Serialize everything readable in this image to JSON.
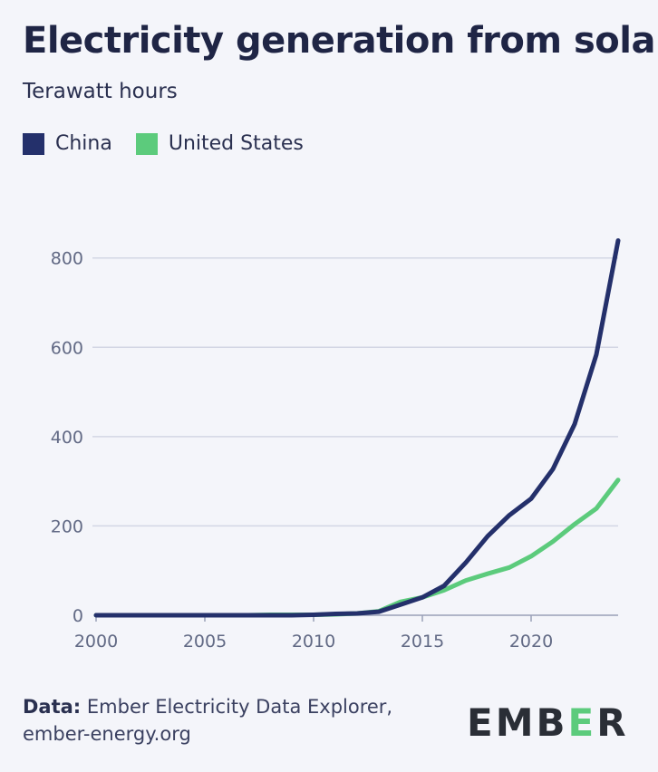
{
  "chart_data": {
    "type": "line",
    "title": "Electricity generation from solar",
    "subtitle": "Terawatt hours",
    "xlabel": "",
    "ylabel": "Terawatt hours",
    "xlim": [
      2000,
      2024
    ],
    "ylim": [
      0,
      840
    ],
    "x_ticks": [
      2000,
      2005,
      2010,
      2015,
      2020
    ],
    "y_ticks": [
      0,
      200,
      400,
      600,
      800
    ],
    "x": [
      2000,
      2001,
      2002,
      2003,
      2004,
      2005,
      2006,
      2007,
      2008,
      2009,
      2010,
      2011,
      2012,
      2013,
      2014,
      2015,
      2016,
      2017,
      2018,
      2019,
      2020,
      2021,
      2022,
      2023,
      2024
    ],
    "series": [
      {
        "name": "China",
        "color": "#24306b",
        "values": [
          0,
          0,
          0,
          0,
          0,
          0,
          0,
          0,
          0,
          0,
          1,
          3,
          4,
          8,
          24,
          40,
          66,
          118,
          177,
          224,
          261,
          327,
          428,
          584,
          839
        ]
      },
      {
        "name": "United States",
        "color": "#5ccb7c",
        "values": [
          0,
          0,
          0,
          0,
          0,
          0,
          0,
          0,
          1,
          1,
          1,
          2,
          4,
          9,
          30,
          40,
          56,
          78,
          93,
          107,
          132,
          165,
          204,
          239,
          303
        ]
      }
    ]
  },
  "footer": {
    "data_label": "Data:",
    "source": "Ember Electricity Data Explorer,",
    "url": "ember-energy.org"
  },
  "logo": {
    "part1": "EMB",
    "part2": "E",
    "part3": "R"
  }
}
